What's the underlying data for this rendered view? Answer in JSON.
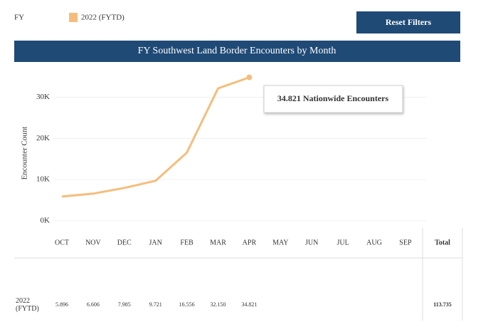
{
  "chart_data": {
    "type": "line",
    "legend_title": "FY",
    "button": "Reset Filters",
    "title": "FY Southwest Land Border Encounters by Month",
    "y_label": "Encounter Count",
    "annotation": "34.821 Nationwide Encounters",
    "categories": [
      "OCT",
      "NOV",
      "DEC",
      "JAN",
      "FEB",
      "MAR",
      "APR",
      "MAY",
      "JUN",
      "JUL",
      "AUG",
      "SEP"
    ],
    "series": [
      {
        "name": "2022 (FYTD)",
        "color": "#f5bd7c",
        "values": [
          5896,
          6606,
          7985,
          9721,
          16556,
          32150,
          34821,
          null,
          null,
          null,
          null,
          null
        ],
        "value_labels": [
          "5.896",
          "6.606",
          "7.985",
          "9.721",
          "16.556",
          "32.150",
          "34.821",
          null,
          null,
          null,
          null,
          null
        ]
      }
    ],
    "total_header": "Total",
    "total": {
      "value": 113735,
      "label": "113.735"
    },
    "ylim": [
      0,
      37000
    ],
    "yticks": [
      {
        "value": 0,
        "label": "0K"
      },
      {
        "value": 10000,
        "label": "10K"
      },
      {
        "value": 20000,
        "label": "20K"
      },
      {
        "value": 30000,
        "label": "30K"
      }
    ],
    "grid": true
  }
}
